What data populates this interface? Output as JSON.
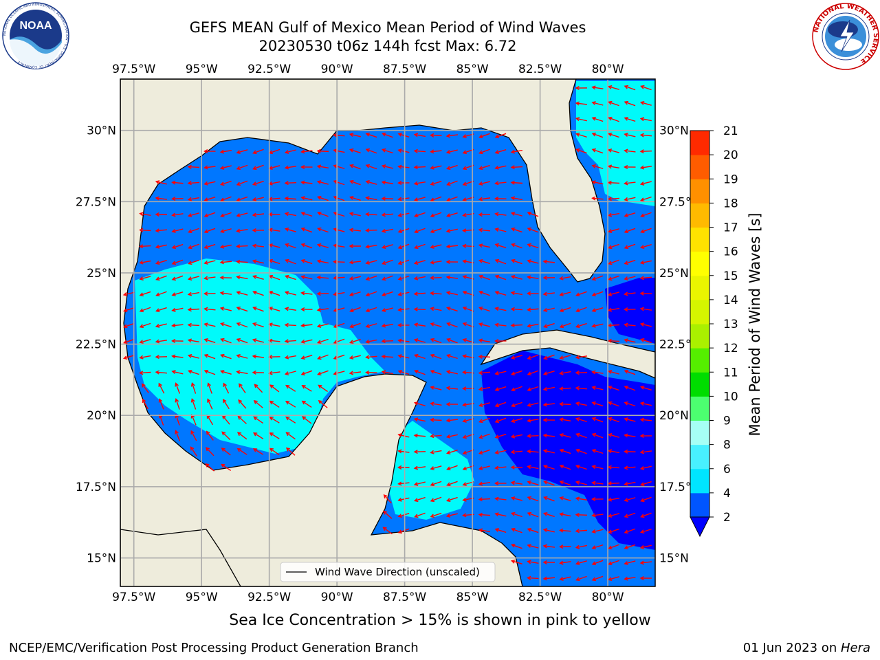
{
  "header": {
    "title_line1": "GEFS MEAN Gulf of Mexico Mean Period of Wind Waves",
    "title_line2": "20230530 t06z 144h fcst   Max: 6.72"
  },
  "logos": {
    "left": "noaa-logo",
    "left_text": "NOAA",
    "left_ring_text": "NATIONAL OCEANIC AND ATMOSPHERIC ADMINISTRATION · U.S. DEPARTMENT OF COMMERCE",
    "right": "nws-logo",
    "right_ring_text": "NATIONAL WEATHER SERVICE"
  },
  "chart_data": {
    "type": "heatmap",
    "title": "GEFS MEAN Gulf of Mexico Mean Period of Wind Waves",
    "subtitle": "20230530 t06z 144h fcst   Max: 6.72",
    "max_value": 6.72,
    "x_ticks": [
      "97.5°W",
      "95°W",
      "92.5°W",
      "90°W",
      "87.5°W",
      "85°W",
      "82.5°W",
      "80°W"
    ],
    "x_values": [
      -97.5,
      -95,
      -92.5,
      -90,
      -87.5,
      -85,
      -82.5,
      -80
    ],
    "y_ticks": [
      "30°N",
      "27.5°N",
      "25°N",
      "22.5°N",
      "20°N",
      "17.5°N",
      "15°N"
    ],
    "y_values": [
      30,
      27.5,
      25,
      22.5,
      20,
      17.5,
      15
    ],
    "lon_range": [
      -98,
      -78.25
    ],
    "lat_range": [
      14,
      31.8
    ],
    "grid": true,
    "legend": {
      "label": "Wind Wave Direction (unscaled)",
      "placement": "lower-center"
    },
    "colorbar": {
      "label": "Mean Period of Wind Waves [s]",
      "levels": [
        2,
        4,
        6,
        8,
        9,
        10,
        11,
        12,
        13,
        14,
        15,
        16,
        17,
        18,
        19,
        20,
        21
      ],
      "colors": [
        "#0055ff",
        "#00e5ff",
        "#48f0ff",
        "#a6fff5",
        "#4cff70",
        "#00dd00",
        "#55ee00",
        "#aaf000",
        "#d5f500",
        "#eaf500",
        "#ffff00",
        "#ffe200",
        "#ffba00",
        "#ff9000",
        "#ff5c00",
        "#ff2a00"
      ],
      "under_color": "#0000ff",
      "tick_labels": [
        "21",
        "20",
        "19",
        "18",
        "17",
        "16",
        "15",
        "14",
        "13",
        "12",
        "11",
        "10",
        "9",
        "8",
        "6",
        "4",
        "2"
      ]
    },
    "colors": {
      "land": "#eeecdc",
      "ocean_low": "#0000ff",
      "ocean_mid": "#0077ff",
      "ocean_high": "#00fafa",
      "arrow": "#ff0000",
      "grid": "#aaaaaa"
    }
  },
  "footer": {
    "note": "Sea Ice Concentration > 15% is shown in pink to yellow",
    "left": "NCEP/EMC/Verification Post Processing Product Generation Branch",
    "right_date": "01 Jun 2023 on ",
    "right_machine": "Hera"
  }
}
